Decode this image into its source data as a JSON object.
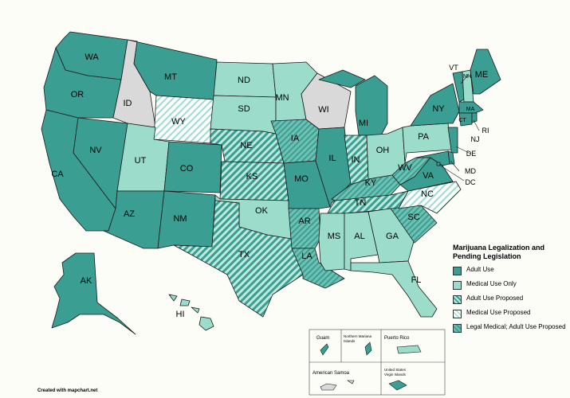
{
  "colors": {
    "adult_use": "#3a9e92",
    "medical_only": "#9bdccb",
    "none": "#d9d9d9",
    "border": "#1a1a1a",
    "background": "#fdfdf8"
  },
  "legend": {
    "title": "Marijuana Legalization and Pending Legislation",
    "items": [
      {
        "label": "Adult Use",
        "fill": "adult"
      },
      {
        "label": "Medical Use Only",
        "fill": "medical"
      },
      {
        "label": "Adult Use Proposed",
        "fill": "adult-hatch"
      },
      {
        "label": "Medical Use Proposed",
        "fill": "medical-hatch"
      },
      {
        "label": "Legal Medical; Adult Use Proposed",
        "fill": "medical-adult-hatch"
      }
    ]
  },
  "states": [
    {
      "code": "WA",
      "status": "adult"
    },
    {
      "code": "OR",
      "status": "adult"
    },
    {
      "code": "CA",
      "status": "adult"
    },
    {
      "code": "NV",
      "status": "adult"
    },
    {
      "code": "ID",
      "status": "none"
    },
    {
      "code": "MT",
      "status": "adult"
    },
    {
      "code": "WY",
      "status": "medical_proposed"
    },
    {
      "code": "UT",
      "status": "medical"
    },
    {
      "code": "AZ",
      "status": "adult"
    },
    {
      "code": "CO",
      "status": "adult"
    },
    {
      "code": "NM",
      "status": "adult"
    },
    {
      "code": "ND",
      "status": "medical"
    },
    {
      "code": "SD",
      "status": "medical"
    },
    {
      "code": "NE",
      "status": "adult_proposed"
    },
    {
      "code": "KS",
      "status": "adult_proposed"
    },
    {
      "code": "OK",
      "status": "medical"
    },
    {
      "code": "TX",
      "status": "adult_proposed"
    },
    {
      "code": "MN",
      "status": "medical"
    },
    {
      "code": "IA",
      "status": "medical_adult_proposed"
    },
    {
      "code": "MO",
      "status": "adult"
    },
    {
      "code": "AR",
      "status": "medical_adult_proposed"
    },
    {
      "code": "LA",
      "status": "medical_adult_proposed"
    },
    {
      "code": "WI",
      "status": "none"
    },
    {
      "code": "IL",
      "status": "adult"
    },
    {
      "code": "MI",
      "status": "adult"
    },
    {
      "code": "IN",
      "status": "adult_proposed"
    },
    {
      "code": "OH",
      "status": "medical"
    },
    {
      "code": "KY",
      "status": "medical_adult_proposed"
    },
    {
      "code": "TN",
      "status": "adult_proposed"
    },
    {
      "code": "MS",
      "status": "medical"
    },
    {
      "code": "AL",
      "status": "medical"
    },
    {
      "code": "GA",
      "status": "medical"
    },
    {
      "code": "FL",
      "status": "medical"
    },
    {
      "code": "SC",
      "status": "medical_adult_proposed"
    },
    {
      "code": "NC",
      "status": "medical_proposed"
    },
    {
      "code": "VA",
      "status": "adult"
    },
    {
      "code": "WV",
      "status": "medical_adult_proposed"
    },
    {
      "code": "PA",
      "status": "medical"
    },
    {
      "code": "NY",
      "status": "adult"
    },
    {
      "code": "VT",
      "status": "adult"
    },
    {
      "code": "NH",
      "status": "medical"
    },
    {
      "code": "ME",
      "status": "adult"
    },
    {
      "code": "MA",
      "status": "adult"
    },
    {
      "code": "CT",
      "status": "adult"
    },
    {
      "code": "RI",
      "status": "adult"
    },
    {
      "code": "NJ",
      "status": "adult"
    },
    {
      "code": "DE",
      "status": "adult"
    },
    {
      "code": "MD",
      "status": "adult"
    },
    {
      "code": "DC",
      "status": "adult"
    },
    {
      "code": "AK",
      "status": "adult"
    },
    {
      "code": "HI",
      "status": "medical"
    }
  ],
  "territories": [
    {
      "name": "Guam",
      "status": "adult"
    },
    {
      "name": "Northern Mariana Islands",
      "status": "adult"
    },
    {
      "name": "Puerto Rico",
      "status": "medical"
    },
    {
      "name": "American Samoa",
      "status": "none"
    },
    {
      "name": "United States Virgin Islands",
      "status": "adult"
    }
  ],
  "credit": "Created with mapchart.net"
}
